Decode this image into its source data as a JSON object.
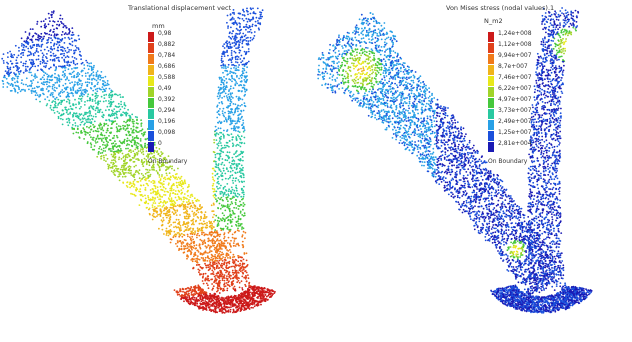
{
  "left": {
    "title": "Translational displacement vect",
    "unit": "mm",
    "legend_labels": [
      "0,98",
      "0,882",
      "0,784",
      "0,686",
      "0,588",
      "0,49",
      "0,392",
      "0,294",
      "0,196",
      "0,098",
      "0"
    ],
    "legend_colors": [
      "#cc1a1a",
      "#e0401a",
      "#f07a1a",
      "#f0b41a",
      "#e8e81a",
      "#a0d428",
      "#46c83c",
      "#28c8a0",
      "#28a0e6",
      "#1a50dc",
      "#1a1ab4"
    ],
    "footer": "On Boundary"
  },
  "right": {
    "title": "Von Mises stress (nodal values).1",
    "unit": "N_m2",
    "legend_labels": [
      "1,24e+008",
      "1,12e+008",
      "9,94e+007",
      "8,7e+007",
      "7,46e+007",
      "6,22e+007",
      "4,97e+007",
      "3,73e+007",
      "2,49e+007",
      "1,25e+007",
      "2,81e+004"
    ],
    "legend_colors": [
      "#cc1a1a",
      "#e0401a",
      "#f07a1a",
      "#f0b41a",
      "#e8e81a",
      "#a0d428",
      "#46c83c",
      "#28c8a0",
      "#28a0e6",
      "#1a50dc",
      "#1a1ab4"
    ],
    "footer": "On Boundary"
  }
}
